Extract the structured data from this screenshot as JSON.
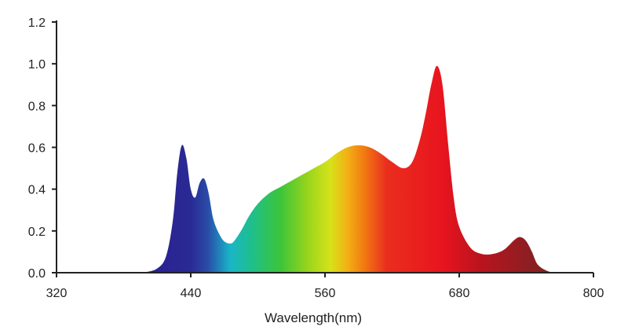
{
  "chart_data": {
    "type": "area",
    "title": "",
    "xlabel": "Wavelength(nm)",
    "ylabel": "",
    "xlim": [
      320,
      800
    ],
    "ylim": [
      0,
      1.2
    ],
    "x_ticks": [
      "320",
      "440",
      "560",
      "680",
      "800"
    ],
    "y_ticks": [
      "0.0",
      "0.2",
      "0.4",
      "0.6",
      "0.8",
      "1.0",
      "1.2"
    ],
    "grid": false,
    "series": [
      {
        "x": [
          398,
          410,
          418,
          424,
          428,
          432,
          436,
          440,
          444,
          448,
          452,
          456,
          460,
          465,
          470,
          476,
          480,
          486,
          492,
          500,
          510,
          520,
          530,
          540,
          550,
          560,
          570,
          580,
          590,
          600,
          610,
          620,
          630,
          638,
          645,
          650,
          655,
          660,
          665,
          670,
          675,
          680,
          690,
          700,
          710,
          720,
          730,
          735,
          740,
          745,
          750,
          758,
          766,
          775
        ],
        "y": [
          0.0,
          0.02,
          0.08,
          0.25,
          0.48,
          0.61,
          0.55,
          0.4,
          0.36,
          0.43,
          0.45,
          0.38,
          0.26,
          0.19,
          0.15,
          0.14,
          0.16,
          0.21,
          0.27,
          0.33,
          0.38,
          0.41,
          0.44,
          0.47,
          0.5,
          0.53,
          0.57,
          0.6,
          0.61,
          0.6,
          0.57,
          0.53,
          0.5,
          0.53,
          0.64,
          0.76,
          0.9,
          0.99,
          0.9,
          0.62,
          0.36,
          0.22,
          0.12,
          0.09,
          0.09,
          0.11,
          0.16,
          0.17,
          0.15,
          0.1,
          0.04,
          0.01,
          0.0,
          0.0
        ]
      }
    ],
    "fill_gradient": [
      [
        398,
        "#2a1f8f"
      ],
      [
        440,
        "#2a2a95"
      ],
      [
        455,
        "#2a4ba8"
      ],
      [
        475,
        "#19b5c8"
      ],
      [
        495,
        "#1fbf8a"
      ],
      [
        520,
        "#3cc43a"
      ],
      [
        545,
        "#9ad51c"
      ],
      [
        565,
        "#d8e21a"
      ],
      [
        580,
        "#f2b014"
      ],
      [
        595,
        "#f17a12"
      ],
      [
        615,
        "#ea2e1e"
      ],
      [
        665,
        "#e8141e"
      ],
      [
        700,
        "#b8141e"
      ],
      [
        740,
        "#8e1e22"
      ],
      [
        775,
        "#7a2424"
      ]
    ],
    "colors": {
      "axis": "#222222"
    }
  }
}
